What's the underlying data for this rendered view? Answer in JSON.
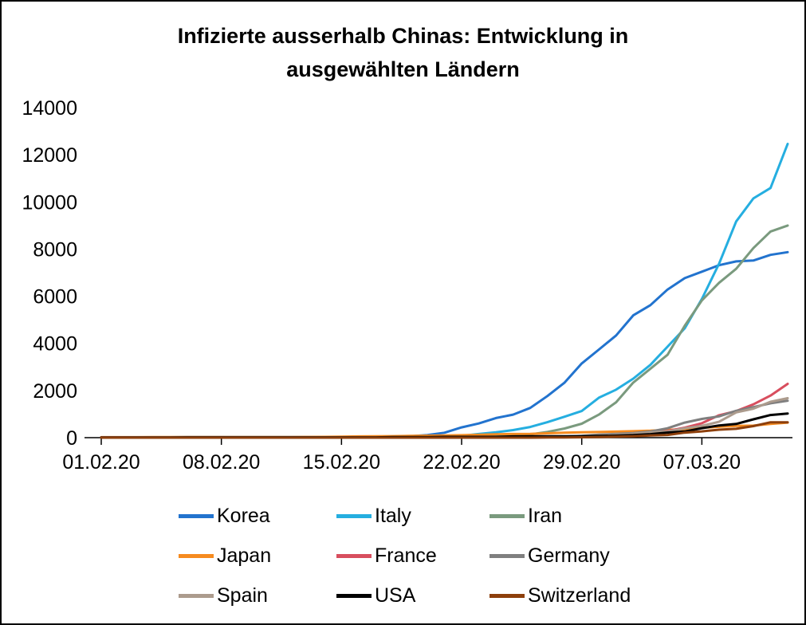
{
  "frame": {
    "background": "#FFFFFF",
    "border_color": "#000000"
  },
  "chart_data": {
    "type": "line",
    "title_lines": [
      "Infizierte ausserhalb Chinas: Entwicklung in",
      "ausgewählten Ländern"
    ],
    "xlabel": "",
    "ylabel": "",
    "ylim": [
      0,
      14000
    ],
    "y_ticks": [
      0,
      2000,
      4000,
      6000,
      8000,
      10000,
      12000,
      14000
    ],
    "x_tick_labels": [
      "01.02.20",
      "08.02.20",
      "15.02.20",
      "22.02.20",
      "29.02.20",
      "07.03.20"
    ],
    "x_tick_indices": [
      0,
      7,
      14,
      21,
      28,
      35
    ],
    "grid": false,
    "legend_position": "bottom",
    "series": [
      {
        "name": "Korea",
        "color": "#2273CE",
        "values": [
          12,
          15,
          15,
          15,
          16,
          23,
          24,
          24,
          25,
          27,
          28,
          28,
          28,
          28,
          28,
          29,
          30,
          31,
          58,
          111,
          209,
          436,
          602,
          833,
          977,
          1261,
          1766,
          2337,
          3150,
          3736,
          4335,
          5186,
          5621,
          6284,
          6767,
          7041,
          7313,
          7478,
          7513,
          7755,
          7869
        ]
      },
      {
        "name": "Italy",
        "color": "#25AEE0",
        "values": [
          2,
          2,
          2,
          2,
          2,
          2,
          3,
          3,
          3,
          3,
          3,
          3,
          3,
          3,
          3,
          3,
          3,
          3,
          3,
          3,
          20,
          79,
          155,
          229,
          322,
          453,
          655,
          888,
          1128,
          1694,
          2036,
          2502,
          3089,
          3858,
          4636,
          5883,
          7375,
          9172,
          10149,
          10590,
          12462
        ]
      },
      {
        "name": "Iran",
        "color": "#7A9A7E",
        "values": [
          0,
          0,
          0,
          0,
          0,
          0,
          0,
          0,
          0,
          0,
          0,
          0,
          0,
          0,
          0,
          0,
          0,
          0,
          2,
          5,
          18,
          28,
          43,
          61,
          95,
          139,
          245,
          388,
          593,
          978,
          1501,
          2336,
          2922,
          3513,
          4747,
          5823,
          6566,
          7161,
          8042,
          8746,
          9000
        ]
      },
      {
        "name": "Japan",
        "color": "#F68B1F",
        "values": [
          20,
          20,
          20,
          23,
          25,
          25,
          25,
          25,
          26,
          26,
          26,
          28,
          29,
          33,
          41,
          53,
          59,
          65,
          73,
          85,
          93,
          105,
          122,
          144,
          156,
          164,
          186,
          210,
          230,
          241,
          256,
          274,
          293,
          331,
          360,
          420,
          461,
          502,
          511,
          581,
          639
        ]
      },
      {
        "name": "France",
        "color": "#D84E5E",
        "values": [
          6,
          6,
          6,
          6,
          6,
          6,
          6,
          11,
          11,
          11,
          11,
          11,
          11,
          11,
          12,
          12,
          12,
          12,
          12,
          12,
          12,
          12,
          12,
          12,
          12,
          14,
          18,
          38,
          57,
          100,
          130,
          191,
          212,
          285,
          423,
          613,
          949,
          1126,
          1412,
          1784,
          2281
        ]
      },
      {
        "name": "Germany",
        "color": "#7F7F7F",
        "values": [
          8,
          10,
          12,
          12,
          12,
          12,
          13,
          13,
          14,
          14,
          14,
          16,
          16,
          16,
          16,
          16,
          16,
          16,
          16,
          16,
          16,
          16,
          16,
          16,
          17,
          27,
          46,
          48,
          79,
          130,
          159,
          196,
          262,
          400,
          639,
          795,
          902,
          1139,
          1296,
          1457,
          1565
        ]
      },
      {
        "name": "Spain",
        "color": "#AC9B8D",
        "values": [
          0,
          0,
          0,
          1,
          1,
          1,
          1,
          1,
          2,
          2,
          2,
          2,
          2,
          2,
          2,
          2,
          2,
          2,
          2,
          2,
          2,
          2,
          2,
          2,
          2,
          3,
          13,
          32,
          45,
          84,
          120,
          165,
          222,
          259,
          400,
          500,
          673,
          1073,
          1231,
          1522,
          1674
        ]
      },
      {
        "name": "USA",
        "color": "#000000",
        "values": [
          8,
          8,
          11,
          11,
          11,
          12,
          12,
          12,
          12,
          12,
          13,
          13,
          14,
          15,
          15,
          15,
          15,
          25,
          25,
          25,
          35,
          35,
          35,
          35,
          53,
          57,
          60,
          60,
          65,
          70,
          85,
          108,
          149,
          217,
          262,
          402,
          518,
          583,
          777,
          959,
          1025
        ]
      },
      {
        "name": "Switzerland",
        "color": "#8D3F0B",
        "values": [
          0,
          0,
          0,
          0,
          0,
          0,
          0,
          0,
          0,
          0,
          0,
          0,
          0,
          0,
          0,
          0,
          0,
          0,
          0,
          0,
          0,
          0,
          0,
          0,
          1,
          1,
          8,
          10,
          18,
          27,
          42,
          56,
          90,
          114,
          214,
          268,
          337,
          374,
          491,
          652,
          652
        ]
      }
    ]
  }
}
